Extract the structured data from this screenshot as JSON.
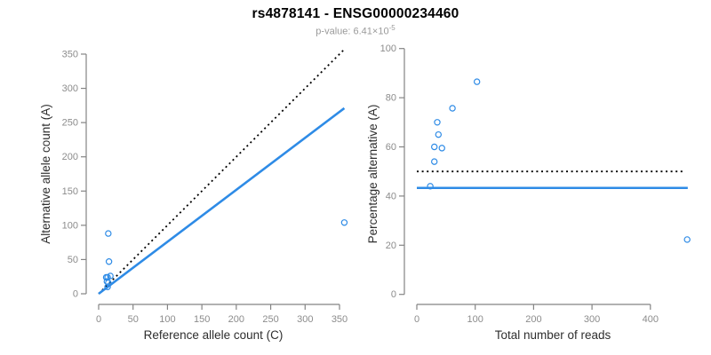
{
  "header": {
    "title": "rs4878141 - ENSG00000234460",
    "pvalue_label": "p-value: 6.41×10",
    "pvalue_exponent": "-5"
  },
  "colors": {
    "accent": "#2E8BE6",
    "reference_line": "#000000",
    "axis": "#848484",
    "tick_label": "#8c8c8c",
    "axis_title": "#2e2e2e",
    "title": "#000000",
    "subtitle": "#9a9a9a",
    "background": "#ffffff"
  },
  "chart_data": [
    {
      "type": "scatter",
      "name": "allele-counts-scatter",
      "xlabel": "Reference allele count (C)",
      "ylabel": "Alternative allele count (A)",
      "xticks": [
        0,
        50,
        100,
        150,
        200,
        250,
        300,
        350
      ],
      "yticks": [
        0,
        50,
        100,
        150,
        200,
        250,
        300,
        350
      ],
      "xlim": [
        0,
        370
      ],
      "ylim": [
        0,
        365
      ],
      "points": [
        [
          14,
          88
        ],
        [
          15,
          47
        ],
        [
          11,
          24
        ],
        [
          13,
          24
        ],
        [
          12,
          18
        ],
        [
          17,
          26
        ],
        [
          14,
          16
        ],
        [
          13,
          10
        ],
        [
          357,
          104
        ]
      ],
      "lines": [
        {
          "name": "identity-line",
          "style": "dotted",
          "color": "#000000",
          "from": [
            0,
            0
          ],
          "to": [
            356,
            356
          ]
        },
        {
          "name": "fit-line",
          "style": "solid",
          "color": "#2E8BE6",
          "from": [
            0,
            0
          ],
          "to": [
            357,
            271
          ]
        }
      ]
    },
    {
      "type": "scatter",
      "name": "percentage-vs-reads-scatter",
      "xlabel": "Total number of reads",
      "ylabel": "Percentage alternative (A)",
      "xticks": [
        0,
        100,
        200,
        300,
        400
      ],
      "yticks": [
        0,
        20,
        40,
        60,
        80,
        100
      ],
      "xlim": [
        0,
        470
      ],
      "ylim": [
        0,
        100
      ],
      "points": [
        [
          103,
          86.5
        ],
        [
          61,
          75.7
        ],
        [
          35,
          70
        ],
        [
          37,
          65
        ],
        [
          30,
          60
        ],
        [
          43,
          59.5
        ],
        [
          30,
          54
        ],
        [
          23,
          44
        ],
        [
          463,
          22.3
        ]
      ],
      "lines": [
        {
          "name": "fifty-percent-line",
          "style": "dotted",
          "color": "#000000",
          "from": [
            0,
            50
          ],
          "to": [
            455,
            50
          ]
        },
        {
          "name": "mean-percentage-line",
          "style": "solid",
          "color": "#2E8BE6",
          "from": [
            0,
            43.3
          ],
          "to": [
            464,
            43.3
          ]
        }
      ]
    }
  ]
}
